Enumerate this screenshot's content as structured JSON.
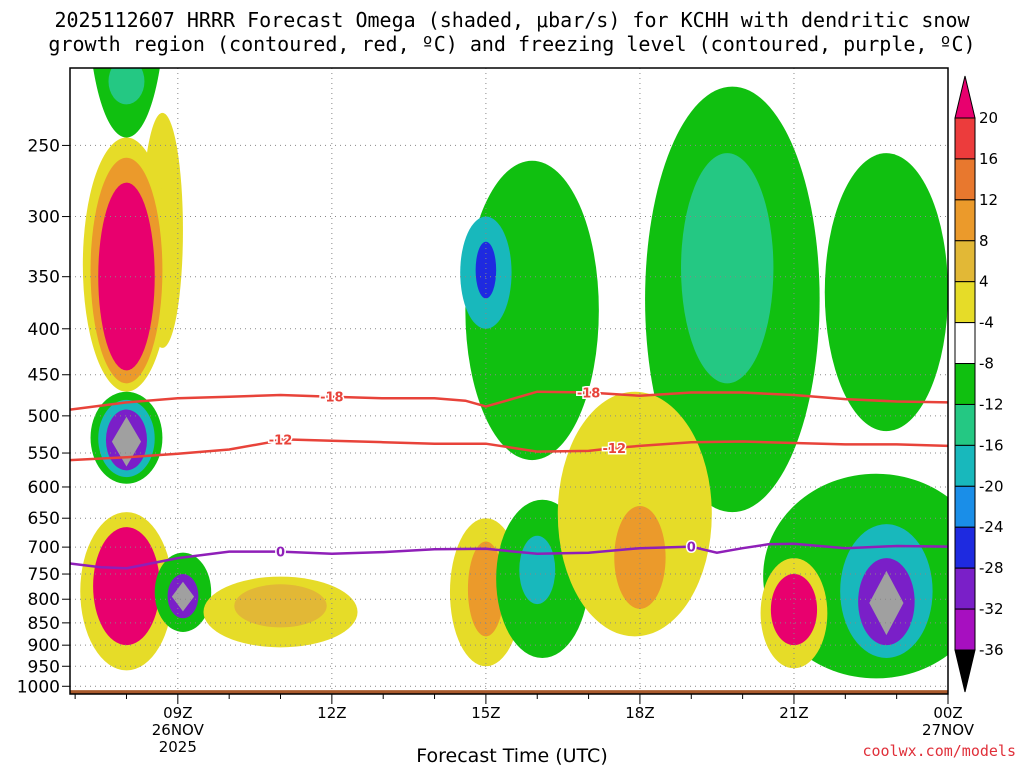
{
  "title_line1": "2025112607 HRRR Forecast Omega (shaded, μbar/s) for KCHH with dendritic snow",
  "title_line2": "growth region (contoured, red, ºC) and freezing level (contoured, purple, ºC)",
  "xlabel": "Forecast Time (UTC)",
  "credit": "coolwx.com/models",
  "colors": {
    "ground": "#a85a2c",
    "dgz_line": "#e8433a",
    "freezing_line": "#8f1fb8",
    "grid": "#888888"
  },
  "chart_data": {
    "type": "heatmap",
    "title": "2025112607 HRRR Forecast Omega (shaded, μbar/s) for KCHH with dendritic snow growth region (contoured, red, ºC) and freezing level (contoured, purple, ºC)",
    "xlabel": "Forecast Time (UTC)",
    "ylabel": "",
    "y_scale": "log-pressure (inverted)",
    "x_range_hours_utc_26nov": [
      6.9,
      24.0
    ],
    "y_range_mb": [
      1020,
      205
    ],
    "grid": true,
    "x_ticks": [
      {
        "hour": 9,
        "lines": [
          "09Z",
          "26NOV",
          "2025"
        ]
      },
      {
        "hour": 12,
        "lines": [
          "12Z"
        ]
      },
      {
        "hour": 15,
        "lines": [
          "15Z"
        ]
      },
      {
        "hour": 18,
        "lines": [
          "18Z"
        ]
      },
      {
        "hour": 21,
        "lines": [
          "21Z"
        ]
      },
      {
        "hour": 24,
        "lines": [
          "00Z",
          "27NOV"
        ]
      }
    ],
    "y_ticks": [
      250,
      300,
      350,
      400,
      450,
      500,
      550,
      600,
      650,
      700,
      750,
      800,
      850,
      900,
      950,
      1000
    ],
    "colorbar": {
      "labels": [
        "20",
        "16",
        "12",
        "8",
        "4",
        "-4",
        "-8",
        "-12",
        "-16",
        "-20",
        "-24",
        "-28",
        "-32",
        "-36"
      ],
      "colors": [
        "#e8006e",
        "#ec3c3c",
        "#e8782e",
        "#eb9a2b",
        "#e2b836",
        "#e6dc28",
        "#ffffff",
        "#10c010",
        "#24c883",
        "#18b8bc",
        "#1a8ee8",
        "#1e2ae0",
        "#7a1fc8",
        "#a70fc0",
        "#a0a0a0",
        "#000000"
      ]
    },
    "ground_level_mb": 1010,
    "contours": [
      {
        "label": "-18",
        "color": "dgz",
        "points": [
          [
            6.9,
            492
          ],
          [
            8,
            483
          ],
          [
            9,
            478
          ],
          [
            10,
            476
          ],
          [
            11,
            474
          ],
          [
            12,
            476
          ],
          [
            13,
            478
          ],
          [
            14,
            478
          ],
          [
            14.6,
            481
          ],
          [
            15,
            488
          ],
          [
            15.4,
            481
          ],
          [
            16,
            470
          ],
          [
            17,
            471
          ],
          [
            18,
            475
          ],
          [
            19,
            471
          ],
          [
            20,
            471
          ],
          [
            21,
            474
          ],
          [
            22,
            479
          ],
          [
            23,
            482
          ],
          [
            24,
            483
          ]
        ]
      },
      {
        "label": "-12",
        "color": "dgz",
        "points": [
          [
            6.9,
            560
          ],
          [
            8,
            556
          ],
          [
            9,
            551
          ],
          [
            10,
            545
          ],
          [
            10.8,
            535
          ],
          [
            11,
            531
          ],
          [
            12,
            533
          ],
          [
            13,
            535
          ],
          [
            14,
            537
          ],
          [
            15,
            537
          ],
          [
            16,
            548
          ],
          [
            17,
            547
          ],
          [
            17.5,
            543
          ],
          [
            18,
            540
          ],
          [
            19,
            535
          ],
          [
            20,
            534
          ],
          [
            21,
            536
          ],
          [
            22,
            538
          ],
          [
            23,
            538
          ],
          [
            24,
            540
          ]
        ]
      },
      {
        "label": "0",
        "color": "freezing",
        "points": [
          [
            6.9,
            730
          ],
          [
            7.5,
            737
          ],
          [
            8,
            739
          ],
          [
            9,
            720
          ],
          [
            10,
            708
          ],
          [
            11,
            708
          ],
          [
            12,
            712
          ],
          [
            13,
            709
          ],
          [
            14,
            704
          ],
          [
            15,
            703
          ],
          [
            16,
            712
          ],
          [
            17,
            710
          ],
          [
            18,
            702
          ],
          [
            19,
            699
          ],
          [
            19.5,
            710
          ],
          [
            20,
            702
          ],
          [
            20.5,
            695
          ],
          [
            21,
            694
          ],
          [
            22,
            702
          ],
          [
            23,
            698
          ],
          [
            24,
            699
          ]
        ]
      }
    ],
    "regions": [
      {
        "value": "-8",
        "cx": 8.0,
        "cy": 208,
        "rx": 0.75,
        "ry_low": 120,
        "ry_high": 245
      },
      {
        "value": "-12",
        "cx": 8.0,
        "cy": 208,
        "rx": 0.35,
        "ry_low": 200,
        "ry_high": 225
      },
      {
        "value": "4",
        "cx": 8.7,
        "cy": 300,
        "rx": 0.4,
        "ry_low": 230,
        "ry_high": 420
      },
      {
        "value": "4",
        "cx": 8.0,
        "cy": 340,
        "rx": 0.85,
        "ry_low": 245,
        "ry_high": 470
      },
      {
        "value": "12",
        "cx": 8.0,
        "cy": 340,
        "rx": 0.7,
        "ry_low": 258,
        "ry_high": 460
      },
      {
        "value": "20",
        "cx": 8.0,
        "cy": 340,
        "rx": 0.55,
        "ry_low": 275,
        "ry_high": 445
      },
      {
        "value": "-8",
        "cx": 8.0,
        "cy": 530,
        "rx": 0.7,
        "ry_low": 470,
        "ry_high": 595
      },
      {
        "value": "-16",
        "cx": 8.0,
        "cy": 530,
        "rx": 0.55,
        "ry_low": 480,
        "ry_high": 585
      },
      {
        "value": "-28",
        "cx": 8.0,
        "cy": 530,
        "rx": 0.4,
        "ry_low": 492,
        "ry_high": 575
      },
      {
        "value": "-36",
        "cx": 8.0,
        "cy": 530,
        "rx": 0.25,
        "ry_low": 505,
        "ry_high": 565
      },
      {
        "value": "4",
        "cx": 8.0,
        "cy": 790,
        "rx": 0.9,
        "ry_low": 640,
        "ry_high": 960
      },
      {
        "value": "20",
        "cx": 8.0,
        "cy": 790,
        "rx": 0.65,
        "ry_low": 665,
        "ry_high": 900
      },
      {
        "value": "-8",
        "cx": 9.1,
        "cy": 795,
        "rx": 0.55,
        "ry_low": 710,
        "ry_high": 870
      },
      {
        "value": "-28",
        "cx": 9.1,
        "cy": 795,
        "rx": 0.3,
        "ry_low": 750,
        "ry_high": 840
      },
      {
        "value": "-36",
        "cx": 9.1,
        "cy": 795,
        "rx": 0.18,
        "ry_low": 770,
        "ry_high": 820
      },
      {
        "value": "4",
        "cx": 11.0,
        "cy": 820,
        "rx": 1.5,
        "ry_low": 755,
        "ry_high": 905
      },
      {
        "value": "8",
        "cx": 11.0,
        "cy": 810,
        "rx": 0.9,
        "ry_low": 770,
        "ry_high": 860
      },
      {
        "value": "-8",
        "cx": 15.9,
        "cy": 350,
        "rx": 1.3,
        "ry_low": 260,
        "ry_high": 560
      },
      {
        "value": "-16",
        "cx": 15.0,
        "cy": 340,
        "rx": 0.5,
        "ry_low": 300,
        "ry_high": 400
      },
      {
        "value": "-24",
        "cx": 15.0,
        "cy": 340,
        "rx": 0.2,
        "ry_low": 320,
        "ry_high": 370
      },
      {
        "value": "-8",
        "cx": 19.8,
        "cy": 380,
        "rx": 1.7,
        "ry_low": 215,
        "ry_high": 640
      },
      {
        "value": "-12",
        "cx": 19.7,
        "cy": 340,
        "rx": 0.9,
        "ry_low": 255,
        "ry_high": 460
      },
      {
        "value": "-8",
        "cx": 22.8,
        "cy": 380,
        "rx": 1.2,
        "ry_low": 255,
        "ry_high": 520
      },
      {
        "value": "-8",
        "cx": 22.6,
        "cy": 720,
        "rx": 2.2,
        "ry_low": 580,
        "ry_high": 980
      },
      {
        "value": "-16",
        "cx": 22.8,
        "cy": 790,
        "rx": 0.9,
        "ry_low": 660,
        "ry_high": 930
      },
      {
        "value": "-28",
        "cx": 22.8,
        "cy": 800,
        "rx": 0.55,
        "ry_low": 720,
        "ry_high": 900
      },
      {
        "value": "-36",
        "cx": 22.8,
        "cy": 810,
        "rx": 0.3,
        "ry_low": 750,
        "ry_high": 870
      },
      {
        "value": "4",
        "cx": 21.0,
        "cy": 810,
        "rx": 0.65,
        "ry_low": 720,
        "ry_high": 955
      },
      {
        "value": "20",
        "cx": 21.0,
        "cy": 810,
        "rx": 0.45,
        "ry_low": 750,
        "ry_high": 900
      },
      {
        "value": "4",
        "cx": 15.0,
        "cy": 800,
        "rx": 0.7,
        "ry_low": 650,
        "ry_high": 950
      },
      {
        "value": "12",
        "cx": 15.0,
        "cy": 790,
        "rx": 0.35,
        "ry_low": 690,
        "ry_high": 880
      },
      {
        "value": "-8",
        "cx": 16.1,
        "cy": 730,
        "rx": 0.9,
        "ry_low": 620,
        "ry_high": 930
      },
      {
        "value": "-16",
        "cx": 16.0,
        "cy": 740,
        "rx": 0.35,
        "ry_low": 680,
        "ry_high": 810
      },
      {
        "value": "4",
        "cx": 17.9,
        "cy": 650,
        "rx": 1.5,
        "ry_low": 470,
        "ry_high": 880
      },
      {
        "value": "12",
        "cx": 18.0,
        "cy": 710,
        "rx": 0.5,
        "ry_low": 630,
        "ry_high": 820
      }
    ]
  }
}
